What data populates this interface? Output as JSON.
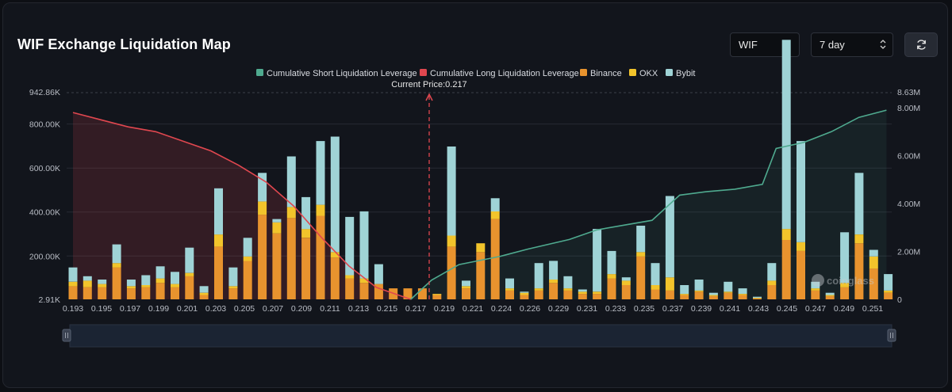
{
  "header": {
    "title": "WIF Exchange Liquidation Map",
    "coin_select_value": "WIF",
    "range_select_value": "7 day",
    "refresh_icon": "refresh-icon"
  },
  "watermark": "coinglass",
  "colors": {
    "short_line": "#4faa8f",
    "long_line": "#e0474f",
    "binance": "#e8932e",
    "okx": "#f2c42b",
    "bybit": "#9fd3d6"
  },
  "chart_data": {
    "type": "bar",
    "title": "",
    "current_price_label": "Current Price:0.217",
    "current_price": 0.217,
    "legend": [
      {
        "label": "Cumulative Short Liquidation Leverage",
        "color": "#4faa8f"
      },
      {
        "label": "Cumulative Long Liquidation Leverage",
        "color": "#e0474f"
      },
      {
        "label": "Binance",
        "color": "#e8932e"
      },
      {
        "label": "OKX",
        "color": "#f2c42b"
      },
      {
        "label": "Bybit",
        "color": "#9fd3d6"
      }
    ],
    "legend_position": "top-center",
    "x_tick_labels": [
      "0.193",
      "0.195",
      "0.197",
      "0.199",
      "0.201",
      "0.203",
      "0.205",
      "0.207",
      "0.209",
      "0.211",
      "0.213",
      "0.215",
      "0.217",
      "0.219",
      "0.221",
      "0.224",
      "0.226",
      "0.229",
      "0.231",
      "0.233",
      "0.235",
      "0.237",
      "0.239",
      "0.241",
      "0.243",
      "0.245",
      "0.247",
      "0.249",
      "0.251"
    ],
    "y_left": {
      "min_label": "2.91K",
      "max_label": "942.86K",
      "ticks": [
        "200.00K",
        "400.00K",
        "600.00K",
        "800.00K"
      ],
      "min": 2910,
      "max": 942860
    },
    "y_right": {
      "min_label": "0",
      "max_label": "8.63M",
      "ticks": [
        "2.00M",
        "4.00M",
        "6.00M",
        "8.00M"
      ],
      "min": 0,
      "max": 8630000
    },
    "grid": true,
    "series": [
      {
        "name": "Binance",
        "values": [
          60,
          55,
          55,
          145,
          50,
          55,
          75,
          55,
          105,
          20,
          240,
          50,
          175,
          385,
          300,
          370,
          280,
          380,
          190,
          95,
          75,
          70,
          50,
          50,
          50,
          20,
          240,
          50,
          215,
          365,
          40,
          20,
          40,
          75,
          40,
          25,
          25,
          95,
          65,
          195,
          45,
          40,
          20,
          35,
          15,
          30,
          20,
          5,
          65,
          270,
          220,
          40,
          15,
          55,
          255,
          140,
          30
        ]
      },
      {
        "name": "OKX",
        "values": [
          20,
          30,
          15,
          20,
          10,
          10,
          20,
          15,
          15,
          10,
          55,
          10,
          20,
          60,
          50,
          50,
          40,
          50,
          25,
          15,
          20,
          0,
          0,
          0,
          0,
          5,
          50,
          10,
          40,
          35,
          10,
          10,
          10,
          15,
          10,
          10,
          10,
          20,
          20,
          20,
          20,
          60,
          5,
          5,
          5,
          5,
          5,
          2,
          20,
          50,
          40,
          10,
          5,
          20,
          40,
          55,
          10
        ]
      },
      {
        "name": "Bybit",
        "values": [
          65,
          20,
          20,
          85,
          30,
          45,
          55,
          55,
          115,
          30,
          210,
          85,
          85,
          130,
          15,
          230,
          145,
          290,
          525,
          265,
          305,
          90,
          0,
          0,
          0,
          0,
          405,
          25,
          0,
          60,
          45,
          5,
          115,
          85,
          55,
          10,
          285,
          105,
          15,
          120,
          100,
          370,
          40,
          50,
          10,
          45,
          25,
          5,
          80,
          860,
          460,
          30,
          10,
          230,
          280,
          30,
          75
        ]
      }
    ],
    "cumulative_short": [
      {
        "x": 0.2175,
        "y": 0
      },
      {
        "x": 0.219,
        "y": 0.8
      },
      {
        "x": 0.221,
        "y": 1.45
      },
      {
        "x": 0.224,
        "y": 1.8
      },
      {
        "x": 0.226,
        "y": 2.1
      },
      {
        "x": 0.229,
        "y": 2.5
      },
      {
        "x": 0.231,
        "y": 2.9
      },
      {
        "x": 0.233,
        "y": 3.1
      },
      {
        "x": 0.235,
        "y": 3.3
      },
      {
        "x": 0.237,
        "y": 4.35
      },
      {
        "x": 0.239,
        "y": 4.5
      },
      {
        "x": 0.241,
        "y": 4.6
      },
      {
        "x": 0.243,
        "y": 4.8
      },
      {
        "x": 0.244,
        "y": 6.3
      },
      {
        "x": 0.246,
        "y": 6.55
      },
      {
        "x": 0.248,
        "y": 7.0
      },
      {
        "x": 0.25,
        "y": 7.6
      },
      {
        "x": 0.252,
        "y": 7.9
      }
    ],
    "cumulative_long": [
      {
        "x": 0.193,
        "y": 7.8
      },
      {
        "x": 0.195,
        "y": 7.5
      },
      {
        "x": 0.197,
        "y": 7.2
      },
      {
        "x": 0.199,
        "y": 7.0
      },
      {
        "x": 0.201,
        "y": 6.6
      },
      {
        "x": 0.203,
        "y": 6.2
      },
      {
        "x": 0.205,
        "y": 5.6
      },
      {
        "x": 0.207,
        "y": 4.9
      },
      {
        "x": 0.209,
        "y": 3.9
      },
      {
        "x": 0.211,
        "y": 2.6
      },
      {
        "x": 0.213,
        "y": 1.4
      },
      {
        "x": 0.215,
        "y": 0.5
      },
      {
        "x": 0.2175,
        "y": 0
      }
    ]
  }
}
